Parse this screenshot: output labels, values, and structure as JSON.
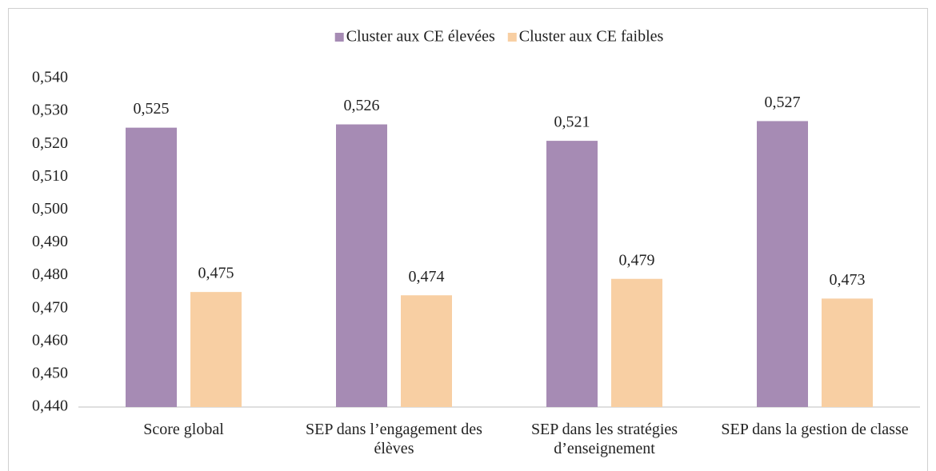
{
  "chart_data": {
    "type": "bar",
    "categories": [
      "Score global",
      "SEP dans l’engagement des élèves",
      "SEP dans les stratégies d’enseignement",
      "SEP dans la gestion de classe"
    ],
    "series": [
      {
        "name": "Cluster aux CE élevées",
        "color": "#a68bb4",
        "values": [
          0.525,
          0.526,
          0.521,
          0.527
        ],
        "value_labels": [
          "0,525",
          "0,526",
          "0,521",
          "0,527"
        ]
      },
      {
        "name": "Cluster aux CE faibles",
        "color": "#f8cfa3",
        "values": [
          0.475,
          0.474,
          0.479,
          0.473
        ],
        "value_labels": [
          "0,475",
          "0,474",
          "0,479",
          "0,473"
        ]
      }
    ],
    "ylim": [
      0.44,
      0.54
    ],
    "yticks": [
      {
        "value": 0.44,
        "label": "0,440"
      },
      {
        "value": 0.45,
        "label": "0,450"
      },
      {
        "value": 0.46,
        "label": "0,460"
      },
      {
        "value": 0.47,
        "label": "0,470"
      },
      {
        "value": 0.48,
        "label": "0,480"
      },
      {
        "value": 0.49,
        "label": "0,490"
      },
      {
        "value": 0.5,
        "label": "0,500"
      },
      {
        "value": 0.51,
        "label": "0,510"
      },
      {
        "value": 0.52,
        "label": "0,520"
      },
      {
        "value": 0.53,
        "label": "0,530"
      },
      {
        "value": 0.54,
        "label": "0,540"
      }
    ],
    "legend": "top",
    "grid": false
  }
}
